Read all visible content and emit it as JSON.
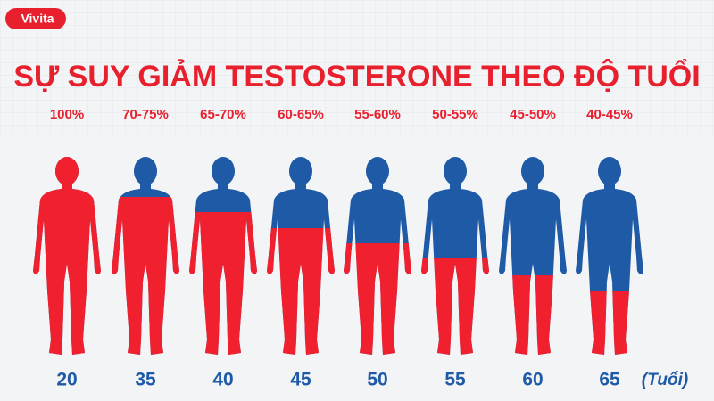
{
  "logo": "Vivita",
  "title": "SỰ SUY GIẢM TESTOSTERONE THEO ĐỘ TUỔI",
  "figures": [
    {
      "percent": "100%",
      "age": "20"
    },
    {
      "percent": "70-75%",
      "age": "35"
    },
    {
      "percent": "65-70%",
      "age": "40"
    },
    {
      "percent": "60-65%",
      "age": "45"
    },
    {
      "percent": "55-60%",
      "age": "50"
    },
    {
      "percent": "50-55%",
      "age": "55"
    },
    {
      "percent": "45-50%",
      "age": "60"
    },
    {
      "percent": "40-45%",
      "age": "65"
    }
  ],
  "unit": "(Tuổi)"
}
